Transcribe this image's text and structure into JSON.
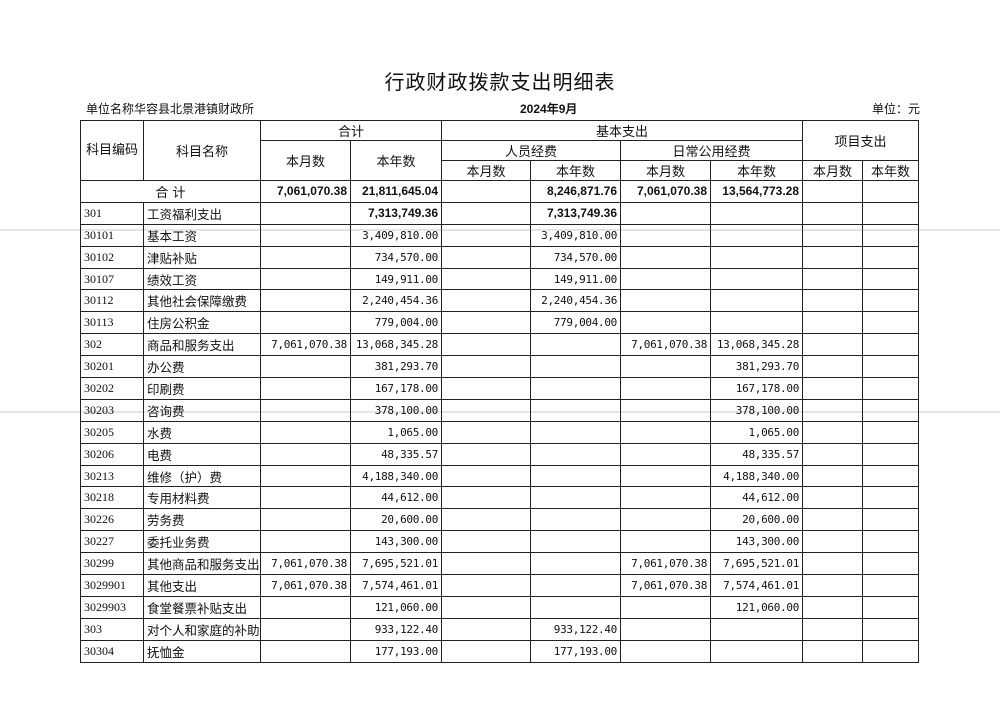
{
  "title": "行政财政拨款支出明细表",
  "unit_name": "单位名称华容县北景港镇财政所",
  "period": "2024年9月",
  "unit": "单位：元",
  "headers": {
    "code": "科目编码",
    "name": "科目名称",
    "total": "合计",
    "basic": "基本支出",
    "personnel": "人员经费",
    "public": "日常公用经费",
    "project": "项目支出",
    "month": "本月数",
    "year": "本年数"
  },
  "total_row": {
    "label": "合  计",
    "values": [
      "7,061,070.38",
      "21,811,645.04",
      "",
      "8,246,871.76",
      "7,061,070.38",
      "13,564,773.28",
      "",
      ""
    ]
  },
  "rows": [
    {
      "code": "301",
      "name": "工资福利支出",
      "values": [
        "",
        "7,313,749.36",
        "",
        "7,313,749.36",
        "",
        "",
        "",
        ""
      ]
    },
    {
      "code": "30101",
      "name": "基本工资",
      "values": [
        "",
        "3,409,810.00",
        "",
        "3,409,810.00",
        "",
        "",
        "",
        ""
      ]
    },
    {
      "code": "30102",
      "name": "津贴补贴",
      "values": [
        "",
        "734,570.00",
        "",
        "734,570.00",
        "",
        "",
        "",
        ""
      ]
    },
    {
      "code": "30107",
      "name": "绩效工资",
      "values": [
        "",
        "149,911.00",
        "",
        "149,911.00",
        "",
        "",
        "",
        ""
      ]
    },
    {
      "code": "30112",
      "name": "其他社会保障缴费",
      "values": [
        "",
        "2,240,454.36",
        "",
        "2,240,454.36",
        "",
        "",
        "",
        ""
      ]
    },
    {
      "code": "30113",
      "name": "住房公积金",
      "values": [
        "",
        "779,004.00",
        "",
        "779,004.00",
        "",
        "",
        "",
        ""
      ]
    },
    {
      "code": "302",
      "name": "商品和服务支出",
      "values": [
        "7,061,070.38",
        "13,068,345.28",
        "",
        "",
        "7,061,070.38",
        "13,068,345.28",
        "",
        ""
      ]
    },
    {
      "code": "30201",
      "name": "办公费",
      "values": [
        "",
        "381,293.70",
        "",
        "",
        "",
        "381,293.70",
        "",
        ""
      ]
    },
    {
      "code": "30202",
      "name": "印刷费",
      "values": [
        "",
        "167,178.00",
        "",
        "",
        "",
        "167,178.00",
        "",
        ""
      ]
    },
    {
      "code": "30203",
      "name": "咨询费",
      "values": [
        "",
        "378,100.00",
        "",
        "",
        "",
        "378,100.00",
        "",
        ""
      ]
    },
    {
      "code": "30205",
      "name": "水费",
      "values": [
        "",
        "1,065.00",
        "",
        "",
        "",
        "1,065.00",
        "",
        ""
      ]
    },
    {
      "code": "30206",
      "name": "电费",
      "values": [
        "",
        "48,335.57",
        "",
        "",
        "",
        "48,335.57",
        "",
        ""
      ]
    },
    {
      "code": "30213",
      "name": "维修（护）费",
      "values": [
        "",
        "4,188,340.00",
        "",
        "",
        "",
        "4,188,340.00",
        "",
        ""
      ]
    },
    {
      "code": "30218",
      "name": "专用材料费",
      "values": [
        "",
        "44,612.00",
        "",
        "",
        "",
        "44,612.00",
        "",
        ""
      ]
    },
    {
      "code": "30226",
      "name": "劳务费",
      "values": [
        "",
        "20,600.00",
        "",
        "",
        "",
        "20,600.00",
        "",
        ""
      ]
    },
    {
      "code": "30227",
      "name": "委托业务费",
      "values": [
        "",
        "143,300.00",
        "",
        "",
        "",
        "143,300.00",
        "",
        ""
      ]
    },
    {
      "code": "30299",
      "name": "其他商品和服务支出",
      "values": [
        "7,061,070.38",
        "7,695,521.01",
        "",
        "",
        "7,061,070.38",
        "7,695,521.01",
        "",
        ""
      ]
    },
    {
      "code": "3029901",
      "name": "其他支出",
      "values": [
        "7,061,070.38",
        "7,574,461.01",
        "",
        "",
        "7,061,070.38",
        "7,574,461.01",
        "",
        ""
      ]
    },
    {
      "code": "3029903",
      "name": "食堂餐票补贴支出",
      "values": [
        "",
        "121,060.00",
        "",
        "",
        "",
        "121,060.00",
        "",
        ""
      ]
    },
    {
      "code": "303",
      "name": "对个人和家庭的补助",
      "values": [
        "",
        "933,122.40",
        "",
        "933,122.40",
        "",
        "",
        "",
        ""
      ]
    },
    {
      "code": "30304",
      "name": "抚恤金",
      "values": [
        "",
        "177,193.00",
        "",
        "177,193.00",
        "",
        "",
        "",
        ""
      ]
    }
  ]
}
